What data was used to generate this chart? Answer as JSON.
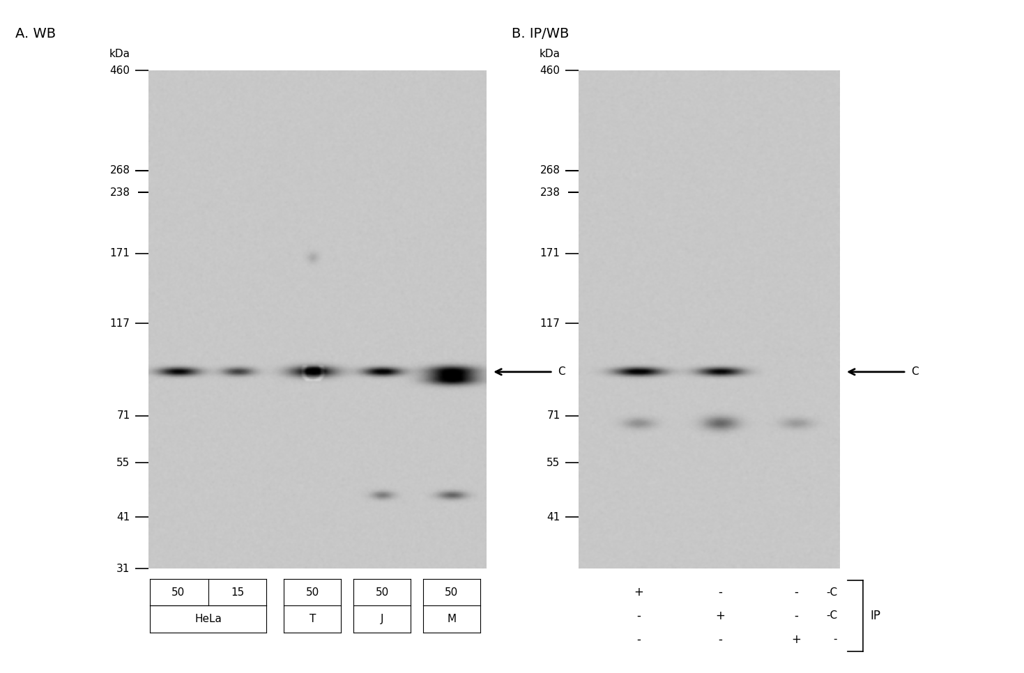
{
  "fig_width": 14.69,
  "fig_height": 9.66,
  "background_color": "#ffffff",
  "panel_A_title": "A. WB",
  "panel_B_title": "B. IP/WB",
  "kda_label": "kDa",
  "mw_markers_A": [
    460,
    268,
    238,
    171,
    117,
    71,
    55,
    41,
    31
  ],
  "mw_markers_B": [
    460,
    268,
    238,
    171,
    117,
    71,
    55,
    41
  ],
  "arrow_label": "C",
  "ip_label": "IP",
  "ip_table_rows": [
    [
      "+",
      "-",
      "-"
    ],
    [
      "-",
      "+",
      "-"
    ],
    [
      "-",
      "-",
      "+"
    ]
  ],
  "ip_row_labels_left": [
    "-C",
    "-C",
    "-"
  ],
  "panel_A_sample_labels_row1": [
    "50",
    "15",
    "50",
    "50",
    "50"
  ],
  "panel_A_sample_labels_row2": [
    "HeLa",
    "T",
    "J",
    "M"
  ],
  "mw_log_min": 2.9,
  "mw_log_max": 6.13,
  "gel_A_bg": 0.78,
  "gel_B_bg": 0.78,
  "noise_level": 0.012
}
